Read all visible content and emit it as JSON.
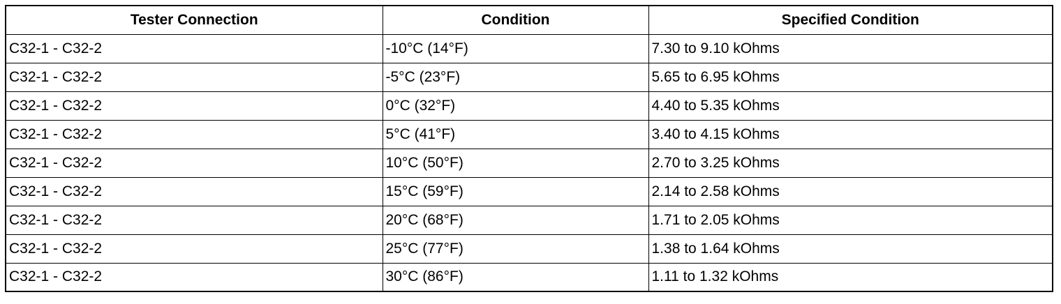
{
  "table": {
    "header": [
      "Tester Connection",
      "Condition",
      "Specified Condition"
    ],
    "rows": [
      [
        "C32-1 - C32-2",
        "-10°C (14°F)",
        "7.30 to 9.10 kOhms"
      ],
      [
        "C32-1 - C32-2",
        "-5°C (23°F)",
        "5.65 to 6.95 kOhms"
      ],
      [
        "C32-1 - C32-2",
        "0°C (32°F)",
        "4.40 to 5.35 kOhms"
      ],
      [
        "C32-1 - C32-2",
        "5°C (41°F)",
        "3.40 to 4.15 kOhms"
      ],
      [
        "C32-1 - C32-2",
        "10°C (50°F)",
        "2.70 to 3.25 kOhms"
      ],
      [
        "C32-1 - C32-2",
        "15°C (59°F)",
        "2.14 to 2.58 kOhms"
      ],
      [
        "C32-1 - C32-2",
        "20°C (68°F)",
        "1.71 to 2.05 kOhms"
      ],
      [
        "C32-1 - C32-2",
        "25°C (77°F)",
        "1.38 to 1.64 kOhms"
      ],
      [
        "C32-1 - C32-2",
        "30°C (86°F)",
        "1.11 to 1.32 kOhms"
      ]
    ]
  }
}
